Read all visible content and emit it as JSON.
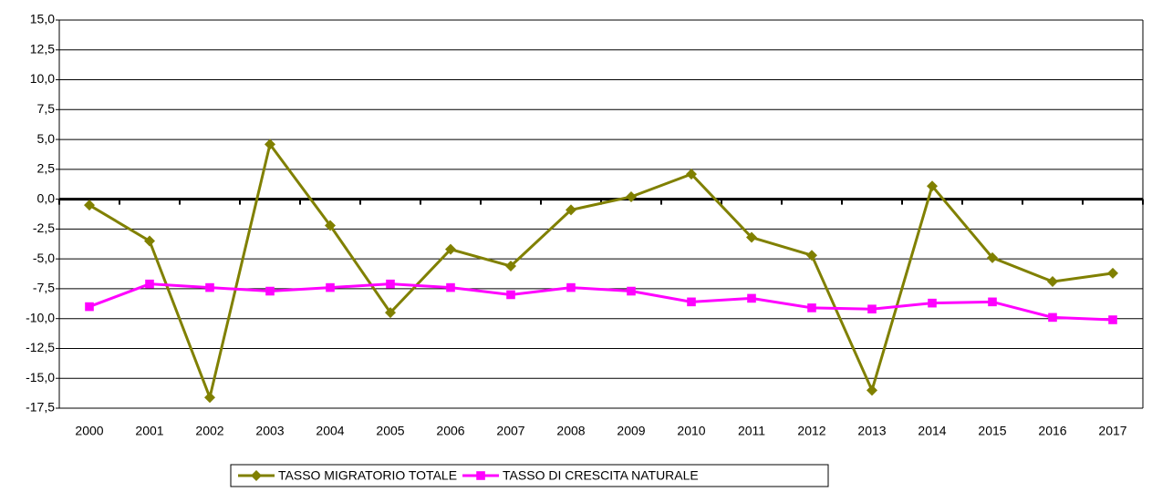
{
  "chart_data": {
    "type": "line",
    "categories": [
      "2000",
      "2001",
      "2002",
      "2003",
      "2004",
      "2005",
      "2006",
      "2007",
      "2008",
      "2009",
      "2010",
      "2011",
      "2012",
      "2013",
      "2014",
      "2015",
      "2016",
      "2017"
    ],
    "series": [
      {
        "name": "TASSO MIGRATORIO TOTALE",
        "color": "#808000",
        "marker": "diamond",
        "values": [
          -0.5,
          -3.5,
          -16.6,
          4.6,
          -2.2,
          -9.5,
          -4.2,
          -5.6,
          -0.9,
          0.2,
          2.1,
          -3.2,
          -4.7,
          -16.0,
          1.1,
          -4.9,
          -6.9,
          -6.2
        ]
      },
      {
        "name": "TASSO DI CRESCITA NATURALE",
        "color": "#ff00ff",
        "marker": "square",
        "values": [
          -9.0,
          -7.1,
          -7.4,
          -7.7,
          -7.4,
          -7.1,
          -7.4,
          -8.0,
          -7.4,
          -7.7,
          -8.6,
          -8.3,
          -9.1,
          -9.2,
          -8.7,
          -8.6,
          -9.9,
          -10.1
        ]
      }
    ],
    "ylim": [
      -17.5,
      15
    ],
    "yticks": [
      {
        "value": -17.5,
        "label": "-17,5"
      },
      {
        "value": -15,
        "label": "-15,0"
      },
      {
        "value": -12.5,
        "label": "-12,5"
      },
      {
        "value": -10,
        "label": "-10,0"
      },
      {
        "value": -7.5,
        "label": "-7,5"
      },
      {
        "value": -5,
        "label": "-5,0"
      },
      {
        "value": -2.5,
        "label": "-2,5"
      },
      {
        "value": 0,
        "label": "0,0"
      },
      {
        "value": 2.5,
        "label": "2,5"
      },
      {
        "value": 5,
        "label": "5,0"
      },
      {
        "value": 7.5,
        "label": "7,5"
      },
      {
        "value": 10,
        "label": "10,0"
      },
      {
        "value": 12.5,
        "label": "12,5"
      },
      {
        "value": 15,
        "label": "15,0"
      }
    ],
    "grid": true,
    "legend": "bottom"
  }
}
